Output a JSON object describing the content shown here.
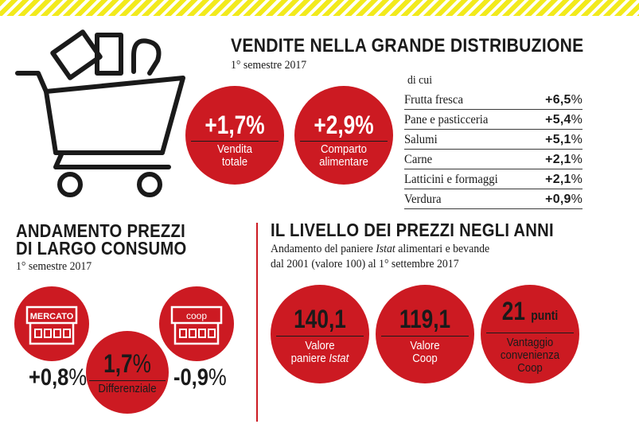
{
  "sales": {
    "title": "VENDITE NELLA GRANDE DISTRIBUZIONE",
    "period": "1° semestre 2017",
    "circles": [
      {
        "value": "+1,7%",
        "label1": "Vendita",
        "label2": "totale"
      },
      {
        "value": "+2,9%",
        "label1": "Comparto",
        "label2": "alimentare"
      }
    ],
    "table_header": "di cui",
    "table": [
      {
        "name": "Frutta fresca",
        "value": "+6,5",
        "unit": "%"
      },
      {
        "name": "Pane e pasticceria",
        "value": "+5,4",
        "unit": "%"
      },
      {
        "name": "Salumi",
        "value": "+5,1",
        "unit": "%"
      },
      {
        "name": "Carne",
        "value": "+2,1",
        "unit": "%"
      },
      {
        "name": "Latticini e formaggi",
        "value": "+2,1",
        "unit": "%"
      },
      {
        "name": "Verdura",
        "value": "+0,9",
        "unit": "%"
      }
    ]
  },
  "prices": {
    "title1": "ANDAMENTO PREZZI",
    "title2": "DI LARGO CONSUMO",
    "period": "1° semestre 2017",
    "market_sign": "MERCATO",
    "coop_sign": "coop",
    "market_value": "+0,8",
    "coop_value": "-0,9",
    "unit": "%",
    "diff_value": "1,7",
    "diff_label": "Differenziale"
  },
  "levels": {
    "title": "IL LIVELLO DEI PREZZI NEGLI ANNI",
    "desc1_pre": "Andamento del paniere ",
    "desc1_em": "Istat",
    "desc1_post": " alimentari e bevande",
    "desc2": "dal 2001 (valore 100) al 1° settembre 2017",
    "circles": [
      {
        "value": "140,1",
        "label1": "Valore",
        "label2_pre": "paniere ",
        "label2_em": "Istat"
      },
      {
        "value": "119,1",
        "label1": "Valore",
        "label2": "Coop"
      },
      {
        "value": "21",
        "unit": "punti",
        "label1": "Vantaggio",
        "label2": "convenienza",
        "label3": "Coop"
      }
    ]
  },
  "colors": {
    "accent": "#cc1a22",
    "stripe": "#f2ea1c"
  }
}
